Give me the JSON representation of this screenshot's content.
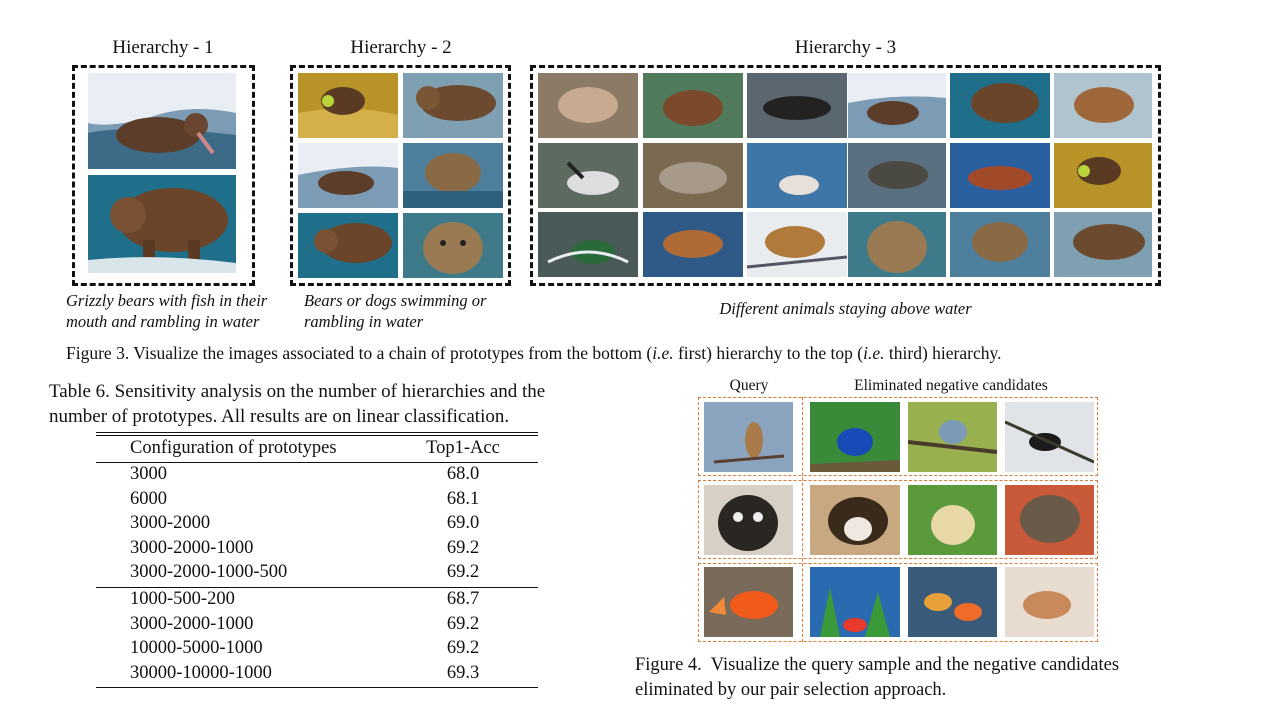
{
  "figure3": {
    "hierarchy_titles": [
      "Hierarchy - 1",
      "Hierarchy - 2",
      "Hierarchy - 3"
    ],
    "captions": {
      "h1_line1": "Grizzly bears with fish in their",
      "h1_line2": "mouth and rambling in water",
      "h2_line1": "Bears or dogs swimming or",
      "h2_line2": "rambling in water",
      "h3": "Different animals staying above water"
    },
    "caption": "Figure 3. Visualize the images associated to a chain of prototypes from the bottom (i.e. first) hierarchy to the top (i.e. third) hierarchy."
  },
  "table6": {
    "caption_line1": "Table 6. Sensitivity analysis on the number of hierarchies and the",
    "caption_line2": "number of prototypes. All results are on linear classification.",
    "headers": [
      "Configuration of prototypes",
      "Top1-Acc"
    ],
    "rows": [
      [
        "3000",
        "68.0"
      ],
      [
        "6000",
        "68.1"
      ],
      [
        "3000-2000",
        "69.0"
      ],
      [
        "3000-2000-1000",
        "69.2"
      ],
      [
        "3000-2000-1000-500",
        "69.2"
      ],
      [
        "1000-500-200",
        "68.7"
      ],
      [
        "3000-2000-1000",
        "69.2"
      ],
      [
        "10000-5000-1000",
        "69.2"
      ],
      [
        "30000-10000-1000",
        "69.3"
      ]
    ]
  },
  "figure4": {
    "query_label": "Query",
    "negatives_label": "Eliminated negative candidates",
    "caption_line1": "Figure 4.  Visualize the query sample and the negative candidates",
    "caption_line2": "eliminated by our pair selection approach."
  }
}
